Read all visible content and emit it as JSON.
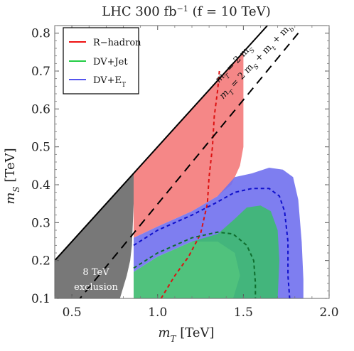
{
  "chart_data": {
    "type": "area",
    "title": "LHC 300 fb⁻¹ (f = 10 TeV)",
    "title_main": "LHC 300 fb",
    "title_sup": "−1",
    "title_rest": " (f = 10 TeV)",
    "xlabel": "m_T [TeV]",
    "xlabel_var": "m",
    "xlabel_sub": "T",
    "xlabel_unit": " [TeV]",
    "ylabel": "m_S [TeV]",
    "ylabel_var": "m",
    "ylabel_sub": "S",
    "ylabel_unit": " [TeV]",
    "xlim": [
      0.4,
      2.0
    ],
    "ylim": [
      0.1,
      0.82
    ],
    "xticks": [
      0.5,
      1.0,
      1.5,
      2.0
    ],
    "xtick_labels": [
      "0.5",
      "1.0",
      "1.5",
      "2.0"
    ],
    "yticks": [
      0.1,
      0.2,
      0.3,
      0.4,
      0.5,
      0.6,
      0.7,
      0.8
    ],
    "ytick_labels": [
      "0.1",
      "0.2",
      "0.3",
      "0.4",
      "0.5",
      "0.6",
      "0.7",
      "0.8"
    ],
    "legend_position": "top-left",
    "legend": [
      {
        "label": "R−hadron",
        "color": "#ee1111"
      },
      {
        "label": "DV+Jet",
        "color": "#22cc44"
      },
      {
        "label": "DV+E",
        "sub": "T",
        "color": "#5555ee"
      }
    ],
    "colors": {
      "r_hadron_fill": "#f47a7a",
      "dv_jet_fill": "#3dbb6f",
      "dv_et_fill": "#7070ee",
      "exclusion_fill": "#787878",
      "r_hadron_line": "#dd1111",
      "dv_jet_line": "#0e6e2e",
      "dv_et_line": "#1010cc"
    },
    "lines": [
      {
        "name": "m_T = 2 m_S",
        "style": "solid",
        "points": [
          [
            0.4,
            0.2
          ],
          [
            1.64,
            0.82
          ]
        ]
      },
      {
        "name": "m_T = 2 m_S + m_t + m_b",
        "style": "dashed",
        "points": [
          [
            0.42,
            0.03
          ],
          [
            1.82,
            0.8
          ]
        ]
      }
    ],
    "annotations": [
      {
        "text": "m_T = 2 m_S",
        "main": "m",
        "sub": "T",
        "rest": " = 2 m",
        "sub2": "S",
        "tail": ""
      },
      {
        "text": "m_T = 2 m_S + m_t + m_b",
        "main": "m",
        "sub": "T",
        "rest": " = 2 m",
        "sub2": "S",
        "tail": " + m",
        "sub3": "t",
        "tail2": " + m",
        "sub4": "b"
      }
    ],
    "exclusion_label": [
      "8 TeV",
      "exclusion"
    ],
    "regions": [
      {
        "name": "8 TeV exclusion",
        "fill": "exclusion",
        "points": [
          [
            0.4,
            0.1
          ],
          [
            0.4,
            0.2
          ],
          [
            0.86,
            0.43
          ],
          [
            0.86,
            0.35
          ],
          [
            0.85,
            0.24
          ],
          [
            0.84,
            0.2
          ],
          [
            0.82,
            0.16
          ],
          [
            0.8,
            0.13
          ],
          [
            0.78,
            0.1
          ]
        ]
      },
      {
        "name": "R-hadron",
        "fill": "r_hadron",
        "points": [
          [
            0.86,
            0.43
          ],
          [
            1.42,
            0.71
          ],
          [
            1.5,
            0.75
          ],
          [
            1.5,
            0.5
          ],
          [
            1.48,
            0.45
          ],
          [
            1.43,
            0.4
          ],
          [
            1.35,
            0.37
          ],
          [
            1.2,
            0.33
          ],
          [
            1.0,
            0.29
          ],
          [
            0.86,
            0.26
          ]
        ]
      },
      {
        "name": "DV+ET",
        "fill": "dv_et",
        "points": [
          [
            0.86,
            0.17
          ],
          [
            0.86,
            0.26
          ],
          [
            1.0,
            0.29
          ],
          [
            1.2,
            0.33
          ],
          [
            1.35,
            0.37
          ],
          [
            1.45,
            0.42
          ],
          [
            1.55,
            0.43
          ],
          [
            1.65,
            0.445
          ],
          [
            1.73,
            0.44
          ],
          [
            1.79,
            0.42
          ],
          [
            1.82,
            0.36
          ],
          [
            1.84,
            0.25
          ],
          [
            1.85,
            0.15
          ],
          [
            1.85,
            0.1
          ],
          [
            1.44,
            0.1
          ],
          [
            1.48,
            0.16
          ],
          [
            1.45,
            0.22
          ],
          [
            1.35,
            0.25
          ],
          [
            1.2,
            0.25
          ],
          [
            1.0,
            0.21
          ]
        ]
      },
      {
        "name": "DV+Jet",
        "fill": "dv_jet",
        "points": [
          [
            0.86,
            0.1
          ],
          [
            0.86,
            0.17
          ],
          [
            1.0,
            0.21
          ],
          [
            1.2,
            0.25
          ],
          [
            1.35,
            0.27
          ],
          [
            1.45,
            0.31
          ],
          [
            1.52,
            0.34
          ],
          [
            1.6,
            0.345
          ],
          [
            1.66,
            0.33
          ],
          [
            1.7,
            0.28
          ],
          [
            1.71,
            0.2
          ],
          [
            1.7,
            0.1
          ]
        ]
      }
    ],
    "contours": [
      {
        "name": "R-hadron",
        "color": "r_hadron_line",
        "points": [
          [
            1.02,
            0.1
          ],
          [
            1.1,
            0.16
          ],
          [
            1.18,
            0.21
          ],
          [
            1.25,
            0.27
          ],
          [
            1.29,
            0.35
          ],
          [
            1.3,
            0.42
          ],
          [
            1.32,
            0.5
          ],
          [
            1.33,
            0.58
          ],
          [
            1.35,
            0.65
          ],
          [
            1.36,
            0.7
          ]
        ]
      },
      {
        "name": "DV+ET",
        "color": "dv_et_line",
        "points": [
          [
            0.86,
            0.24
          ],
          [
            1.0,
            0.28
          ],
          [
            1.2,
            0.32
          ],
          [
            1.33,
            0.35
          ],
          [
            1.45,
            0.38
          ],
          [
            1.55,
            0.39
          ],
          [
            1.65,
            0.39
          ],
          [
            1.71,
            0.37
          ],
          [
            1.74,
            0.33
          ],
          [
            1.76,
            0.25
          ],
          [
            1.76,
            0.16
          ],
          [
            1.77,
            0.1
          ]
        ]
      },
      {
        "name": "DV+Jet",
        "color": "dv_jet_line",
        "points": [
          [
            0.86,
            0.18
          ],
          [
            1.0,
            0.22
          ],
          [
            1.1,
            0.24
          ],
          [
            1.2,
            0.26
          ],
          [
            1.35,
            0.275
          ],
          [
            1.44,
            0.27
          ],
          [
            1.52,
            0.24
          ],
          [
            1.56,
            0.2
          ],
          [
            1.57,
            0.14
          ],
          [
            1.57,
            0.1
          ]
        ]
      }
    ]
  }
}
